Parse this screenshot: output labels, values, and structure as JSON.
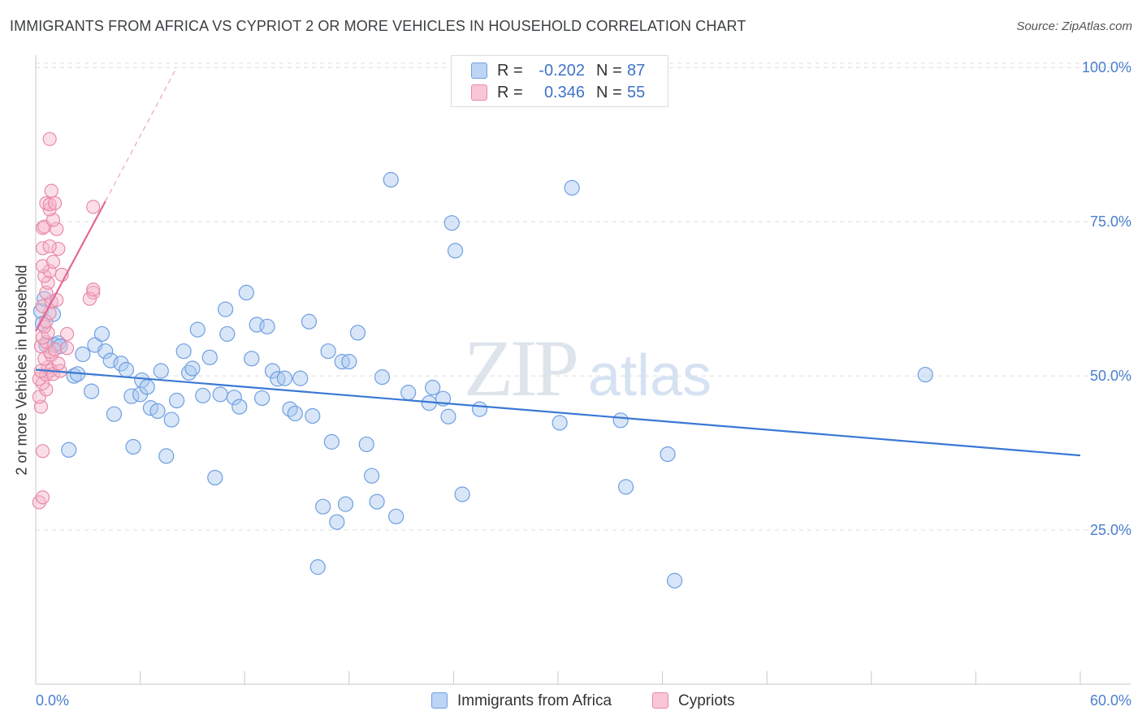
{
  "title": "IMMIGRANTS FROM AFRICA VS CYPRIOT 2 OR MORE VEHICLES IN HOUSEHOLD CORRELATION CHART",
  "source": "Source: ZipAtlas.com",
  "watermark": {
    "zip": "ZIP",
    "atlas": "atlas"
  },
  "legend": {
    "rows": [
      {
        "r_label": "R =",
        "r_value": "-0.202",
        "n_label": "N =",
        "n_value": "87",
        "color": "#a8c8f0",
        "border": "#6f9fe0"
      },
      {
        "r_label": "R =",
        "r_value": "0.346",
        "n_label": "N =",
        "n_value": "55",
        "color": "#f7b8cc",
        "border": "#e889a8"
      }
    ]
  },
  "bottom_legend": [
    {
      "label": "Immigrants from Africa",
      "color": "#a8c8f0",
      "border": "#6f9fe0"
    },
    {
      "label": "Cypriots",
      "color": "#f7b8cc",
      "border": "#e889a8"
    }
  ],
  "chart_data": {
    "type": "scatter",
    "title": "IMMIGRANTS FROM AFRICA VS CYPRIOT 2 OR MORE VEHICLES IN HOUSEHOLD CORRELATION CHART",
    "xlabel": "",
    "ylabel": "2 or more Vehicles in Household",
    "xlim": [
      0,
      60
    ],
    "ylim": [
      0,
      102
    ],
    "x_tick_labels": [
      "0.0%",
      "60.0%"
    ],
    "y_ticks": [
      25,
      50,
      75,
      100
    ],
    "y_tick_labels": [
      "25.0%",
      "50.0%",
      "75.0%",
      "100.0%"
    ],
    "grid": true,
    "series": [
      {
        "name": "Immigrants from Africa",
        "color": "#a8c8f0",
        "edge": "#6f9fe0",
        "line_color": "#3a78d4",
        "trend": {
          "x0": 0,
          "y0": 51.0,
          "x1": 60,
          "y1": 37.1
        },
        "points": [
          [
            0.4,
            58.5
          ],
          [
            0.3,
            60.5
          ],
          [
            0.6,
            55.0
          ],
          [
            1.1,
            55.0
          ],
          [
            1.3,
            55.3
          ],
          [
            1.9,
            38.0
          ],
          [
            2.2,
            50.0
          ],
          [
            2.4,
            50.3
          ],
          [
            2.7,
            53.5
          ],
          [
            3.2,
            47.5
          ],
          [
            3.4,
            55.0
          ],
          [
            3.8,
            56.8
          ],
          [
            4.0,
            54.0
          ],
          [
            4.3,
            52.5
          ],
          [
            4.5,
            43.8
          ],
          [
            4.9,
            52.0
          ],
          [
            5.2,
            51.0
          ],
          [
            5.5,
            46.7
          ],
          [
            5.6,
            38.5
          ],
          [
            6.0,
            47.0
          ],
          [
            6.1,
            49.3
          ],
          [
            6.4,
            48.2
          ],
          [
            6.6,
            44.8
          ],
          [
            7.0,
            44.3
          ],
          [
            7.2,
            50.8
          ],
          [
            7.5,
            37.0
          ],
          [
            7.8,
            42.9
          ],
          [
            8.1,
            46.0
          ],
          [
            8.5,
            54.0
          ],
          [
            8.8,
            50.5
          ],
          [
            9.0,
            51.2
          ],
          [
            9.3,
            57.5
          ],
          [
            9.6,
            46.8
          ],
          [
            10.0,
            53.0
          ],
          [
            10.3,
            33.5
          ],
          [
            10.6,
            47.0
          ],
          [
            10.9,
            60.8
          ],
          [
            11.0,
            56.8
          ],
          [
            11.4,
            46.5
          ],
          [
            11.7,
            45.0
          ],
          [
            12.1,
            63.5
          ],
          [
            12.4,
            52.8
          ],
          [
            12.7,
            58.3
          ],
          [
            13.0,
            46.4
          ],
          [
            13.3,
            58.0
          ],
          [
            13.6,
            50.8
          ],
          [
            13.9,
            49.5
          ],
          [
            14.3,
            49.6
          ],
          [
            14.6,
            44.6
          ],
          [
            14.9,
            43.9
          ],
          [
            15.2,
            49.6
          ],
          [
            15.7,
            58.8
          ],
          [
            15.9,
            43.5
          ],
          [
            16.2,
            19.0
          ],
          [
            16.5,
            28.8
          ],
          [
            16.8,
            54.0
          ],
          [
            17.0,
            39.3
          ],
          [
            17.3,
            26.3
          ],
          [
            17.6,
            52.3
          ],
          [
            17.8,
            29.2
          ],
          [
            18.0,
            52.3
          ],
          [
            18.5,
            57.0
          ],
          [
            19.0,
            38.9
          ],
          [
            19.3,
            33.8
          ],
          [
            19.6,
            29.6
          ],
          [
            19.9,
            49.8
          ],
          [
            20.4,
            81.8
          ],
          [
            20.7,
            27.2
          ],
          [
            21.4,
            47.3
          ],
          [
            22.6,
            45.6
          ],
          [
            22.8,
            48.1
          ],
          [
            23.4,
            46.3
          ],
          [
            23.7,
            43.4
          ],
          [
            23.9,
            74.8
          ],
          [
            24.1,
            70.3
          ],
          [
            24.5,
            30.8
          ],
          [
            25.5,
            44.6
          ],
          [
            30.1,
            42.4
          ],
          [
            30.8,
            80.5
          ],
          [
            33.6,
            42.8
          ],
          [
            33.9,
            32.0
          ],
          [
            36.3,
            37.3
          ],
          [
            36.7,
            16.8
          ],
          [
            51.1,
            50.2
          ],
          [
            0.5,
            62.5
          ],
          [
            1.4,
            54.8
          ],
          [
            1.0,
            60.0
          ]
        ]
      },
      {
        "name": "Cypriots",
        "color": "#f7b8cc",
        "edge": "#e889a8",
        "line_color": "#e06897",
        "trend": {
          "x0": 0,
          "y0": 57.2,
          "x1": 4.0,
          "y1": 78.3
        },
        "trend_extension": {
          "x0": 4.0,
          "y0": 78.3,
          "x1": 8.0,
          "y1": 99.5
        },
        "points": [
          [
            0.2,
            29.5
          ],
          [
            0.4,
            30.3
          ],
          [
            0.4,
            37.8
          ],
          [
            0.3,
            45.0
          ],
          [
            0.2,
            46.6
          ],
          [
            0.6,
            47.8
          ],
          [
            0.4,
            48.8
          ],
          [
            0.2,
            49.5
          ],
          [
            0.6,
            50.2
          ],
          [
            0.3,
            50.8
          ],
          [
            0.9,
            50.9
          ],
          [
            0.7,
            51.4
          ],
          [
            1.0,
            50.3
          ],
          [
            0.5,
            52.8
          ],
          [
            0.9,
            53.4
          ],
          [
            0.8,
            53.9
          ],
          [
            1.1,
            54.3
          ],
          [
            0.3,
            54.8
          ],
          [
            0.6,
            55.5
          ],
          [
            0.4,
            56.2
          ],
          [
            0.7,
            57.0
          ],
          [
            1.8,
            56.8
          ],
          [
            0.5,
            58.0
          ],
          [
            0.6,
            58.8
          ],
          [
            0.8,
            60.2
          ],
          [
            0.4,
            61.3
          ],
          [
            0.9,
            62.0
          ],
          [
            1.2,
            62.3
          ],
          [
            0.6,
            63.5
          ],
          [
            0.7,
            65.1
          ],
          [
            0.5,
            66.2
          ],
          [
            1.5,
            66.4
          ],
          [
            0.8,
            67.0
          ],
          [
            0.4,
            67.8
          ],
          [
            1.0,
            68.5
          ],
          [
            1.3,
            70.6
          ],
          [
            0.4,
            70.7
          ],
          [
            0.8,
            71.0
          ],
          [
            0.4,
            74.0
          ],
          [
            0.5,
            74.2
          ],
          [
            1.2,
            73.8
          ],
          [
            1.0,
            75.3
          ],
          [
            0.8,
            77.0
          ],
          [
            0.6,
            78.0
          ],
          [
            0.8,
            77.8
          ],
          [
            1.1,
            78.0
          ],
          [
            0.9,
            80.0
          ],
          [
            0.8,
            88.4
          ],
          [
            3.3,
            77.4
          ],
          [
            3.3,
            63.5
          ],
          [
            3.1,
            62.5
          ],
          [
            3.3,
            64.0
          ],
          [
            1.4,
            50.8
          ],
          [
            1.8,
            54.5
          ],
          [
            1.3,
            52.0
          ]
        ]
      }
    ]
  }
}
